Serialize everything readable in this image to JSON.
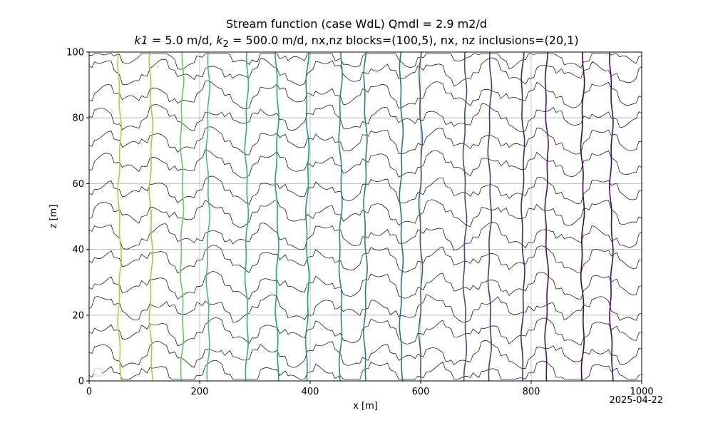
{
  "chart_data": {
    "type": "line",
    "title": "Stream function (case WdL) Qmdl = 2.9 m2/d",
    "subtitle_parts": {
      "k1_sym": "k1",
      "k1_val": " = 5.0 m/d",
      "sep": ", ",
      "k2_sym": "k",
      "k2_sub": "2",
      "k2_val": " = 500.0 m/d",
      "rest": ", nx,nz blocks=(100,5), nx, nz inclusions=(20,1)"
    },
    "xlabel": "x [m]",
    "ylabel": "z [m]",
    "xlim": [
      0,
      1000
    ],
    "ylim": [
      0,
      100
    ],
    "xticks": [
      "0",
      "200",
      "400",
      "600",
      "800",
      "1000"
    ],
    "yticks": [
      "0",
      "20",
      "40",
      "60",
      "80",
      "100"
    ],
    "grid": true,
    "legend": "lower-left, empty",
    "date": "2025-04-22",
    "head_contours": {
      "color": "#000000",
      "z_levels": [
        2,
        8,
        15,
        22,
        29,
        37,
        44,
        51,
        58,
        66,
        73,
        80,
        87,
        94,
        99
      ]
    },
    "stream_lines": [
      {
        "x": 55,
        "color": "#a0da39"
      },
      {
        "x": 112,
        "color": "#8ed645"
      },
      {
        "x": 168,
        "color": "#65cb5e"
      },
      {
        "x": 215,
        "color": "#46c06f"
      },
      {
        "x": 285,
        "color": "#2eb37c"
      },
      {
        "x": 340,
        "color": "#21a585"
      },
      {
        "x": 395,
        "color": "#1f978b"
      },
      {
        "x": 455,
        "color": "#23898e"
      },
      {
        "x": 500,
        "color": "#297b8e"
      },
      {
        "x": 565,
        "color": "#2e6d8e"
      },
      {
        "x": 600,
        "color": "#355f8d"
      },
      {
        "x": 680,
        "color": "#3e4c8a"
      },
      {
        "x": 725,
        "color": "#443a83"
      },
      {
        "x": 785,
        "color": "#482878"
      },
      {
        "x": 828,
        "color": "#471365"
      },
      {
        "x": 893,
        "color": "#440154"
      },
      {
        "x": 945,
        "color": "#3b0f70"
      }
    ]
  }
}
